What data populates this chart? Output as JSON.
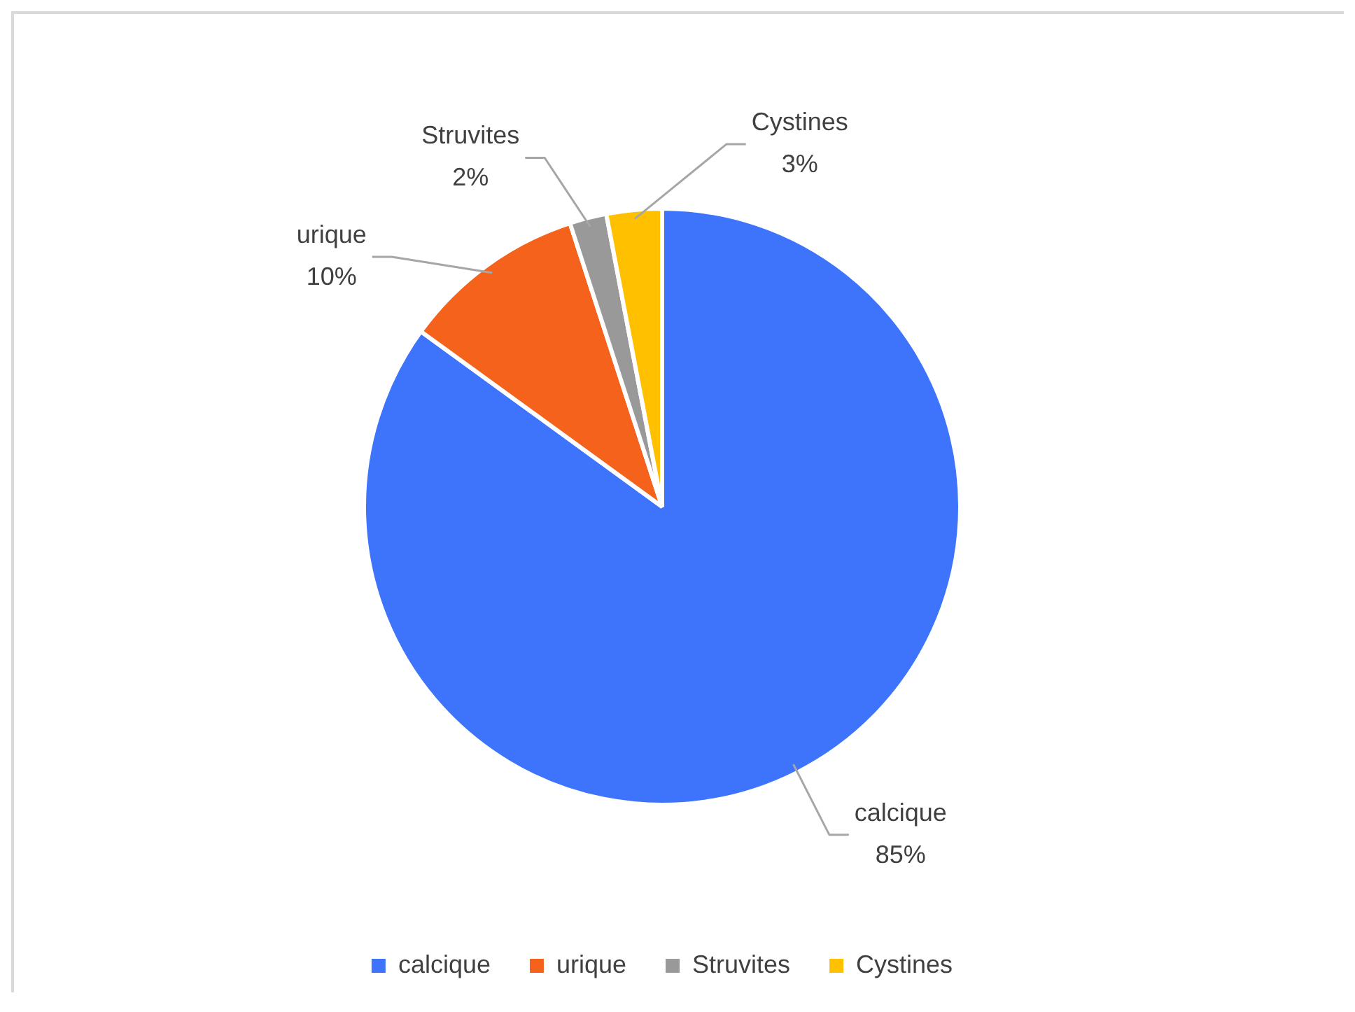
{
  "chart_data": {
    "type": "pie",
    "categories": [
      "calcique",
      "urique",
      "Struvites",
      "Cystines"
    ],
    "values": [
      85,
      10,
      2,
      3
    ],
    "colors": [
      "#3d74fb",
      "#f5621b",
      "#999999",
      "#ffc000"
    ],
    "value_labels": [
      "85%",
      "10%",
      "2%",
      "3%"
    ],
    "legend": "bottom"
  }
}
